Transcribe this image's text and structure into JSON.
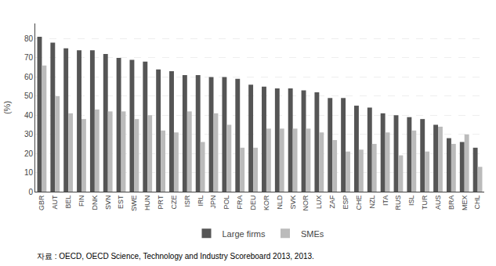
{
  "chart_data": {
    "type": "bar",
    "categories": [
      "GBR",
      "AUT",
      "BEL",
      "FIN",
      "DNK",
      "SVN",
      "EST",
      "SWE",
      "HUN",
      "PRT",
      "CZE",
      "ISR",
      "IRL",
      "JPN",
      "POL",
      "FRA",
      "DEU",
      "KOR",
      "NLD",
      "SVK",
      "NOR",
      "LUX",
      "ZAF",
      "ESP",
      "CHE",
      "NZL",
      "ITA",
      "RUS",
      "ISL",
      "TUR",
      "AUS",
      "BRA",
      "MEX",
      "CHL"
    ],
    "series": [
      {
        "name": "Large firms",
        "color": "#555555",
        "values": [
          81,
          78,
          75,
          74,
          74,
          72,
          70,
          69,
          68,
          64,
          63,
          61,
          61,
          60,
          60,
          59,
          56,
          55,
          54,
          54,
          53,
          52,
          49,
          49,
          45,
          44,
          41,
          40,
          39,
          38,
          35,
          28,
          26,
          23
        ]
      },
      {
        "name": "SMEs",
        "color": "#bbbbbb",
        "values": [
          66,
          50,
          41,
          38,
          43,
          42,
          42,
          38,
          40,
          32,
          31,
          42,
          26,
          41,
          35,
          23,
          23,
          33,
          33,
          33,
          33,
          31,
          27,
          21,
          22,
          25,
          31,
          19,
          32,
          21,
          34,
          25,
          30,
          13
        ]
      }
    ],
    "ylabel": "(%)",
    "ylim": [
      0,
      88
    ],
    "yticks": [
      0,
      10,
      20,
      30,
      40,
      50,
      60,
      70,
      80
    ],
    "grid": true,
    "legend": "bottom",
    "annotations": [
      "자료 : OECD, OECD Science, Technology and Industry Scoreboard 2013, 2013."
    ]
  }
}
